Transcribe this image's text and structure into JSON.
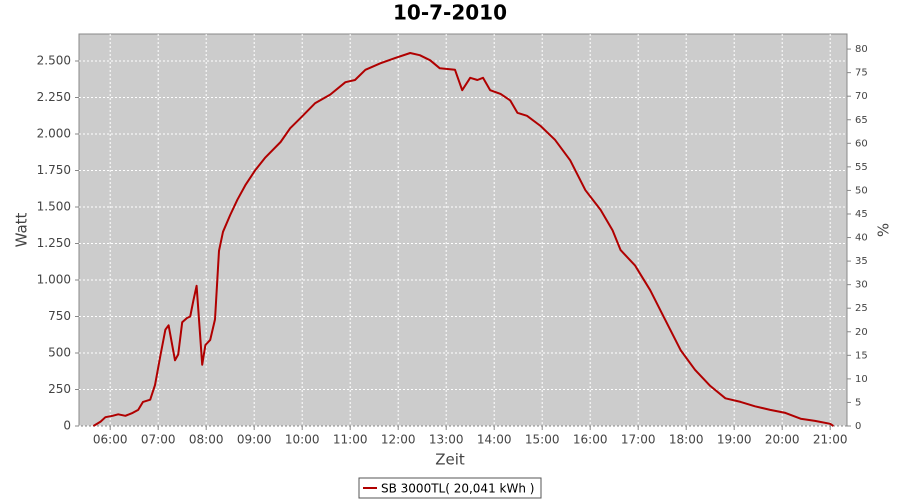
{
  "chart_data": {
    "type": "line",
    "title": "10-7-2010",
    "x_label": "Zeit",
    "y_label": "Watt",
    "y2_label": "%",
    "x": [
      "05:39",
      "05:48",
      "05:54",
      "06:03",
      "06:10",
      "06:19",
      "06:28",
      "06:35",
      "06:41",
      "06:50",
      "06:56",
      "07:03",
      "07:09",
      "07:13",
      "07:16",
      "07:21",
      "07:25",
      "07:30",
      "07:36",
      "07:40",
      "07:44",
      "07:48",
      "07:51",
      "07:55",
      "07:59",
      "08:05",
      "08:11",
      "08:16",
      "08:21",
      "08:30",
      "08:39",
      "08:49",
      "09:01",
      "09:14",
      "09:33",
      "09:45",
      "09:58",
      "10:16",
      "10:35",
      "10:54",
      "11:06",
      "11:19",
      "11:38",
      "11:56",
      "12:15",
      "12:27",
      "12:40",
      "12:52",
      "13:11",
      "13:20",
      "13:30",
      "13:39",
      "13:46",
      "13:55",
      "14:08",
      "14:20",
      "14:29",
      "14:41",
      "14:58",
      "15:16",
      "15:35",
      "15:54",
      "16:13",
      "16:28",
      "16:38",
      "16:56",
      "17:15",
      "17:34",
      "17:53",
      "18:11",
      "18:30",
      "18:49",
      "19:08",
      "19:26",
      "19:45",
      "20:04",
      "20:23",
      "20:41",
      "21:00",
      "21:04"
    ],
    "series": [
      {
        "name": "SB 3000TL( 20,041 kWh )",
        "color": "#b00000",
        "values": [
          0,
          30,
          60,
          70,
          80,
          70,
          90,
          110,
          165,
          180,
          280,
          490,
          660,
          690,
          600,
          450,
          490,
          710,
          740,
          750,
          860,
          960,
          730,
          420,
          555,
          590,
          730,
          1200,
          1330,
          1445,
          1550,
          1650,
          1750,
          1840,
          1945,
          2040,
          2110,
          2210,
          2270,
          2355,
          2370,
          2440,
          2485,
          2520,
          2555,
          2540,
          2505,
          2450,
          2440,
          2300,
          2385,
          2370,
          2385,
          2300,
          2275,
          2230,
          2145,
          2125,
          2055,
          1960,
          1820,
          1615,
          1480,
          1340,
          1205,
          1100,
          930,
          725,
          520,
          385,
          275,
          190,
          165,
          135,
          110,
          90,
          50,
          35,
          15,
          0
        ]
      }
    ],
    "xlim": [
      "05:21",
      "21:21"
    ],
    "xticks": [
      "06:00",
      "07:00",
      "08:00",
      "09:00",
      "10:00",
      "11:00",
      "12:00",
      "13:00",
      "14:00",
      "15:00",
      "16:00",
      "17:00",
      "18:00",
      "19:00",
      "20:00",
      "21:00"
    ],
    "ylim": [
      0,
      2685
    ],
    "yticks": [
      0,
      250,
      500,
      750,
      {
        "value": 1000,
        "label": "1.000"
      },
      {
        "value": 1250,
        "label": "1.250"
      },
      {
        "value": 1500,
        "label": "1.500"
      },
      {
        "value": 1750,
        "label": "1.750"
      },
      {
        "value": 2000,
        "label": "2.000"
      },
      {
        "value": 2250,
        "label": "2.250"
      },
      {
        "value": 2500,
        "label": "2.500"
      }
    ],
    "y2lim": [
      0,
      83.2
    ],
    "y2ticks": [
      0,
      5,
      10,
      15,
      20,
      25,
      30,
      35,
      40,
      45,
      50,
      55,
      60,
      65,
      70,
      75,
      80
    ],
    "grid": true
  }
}
